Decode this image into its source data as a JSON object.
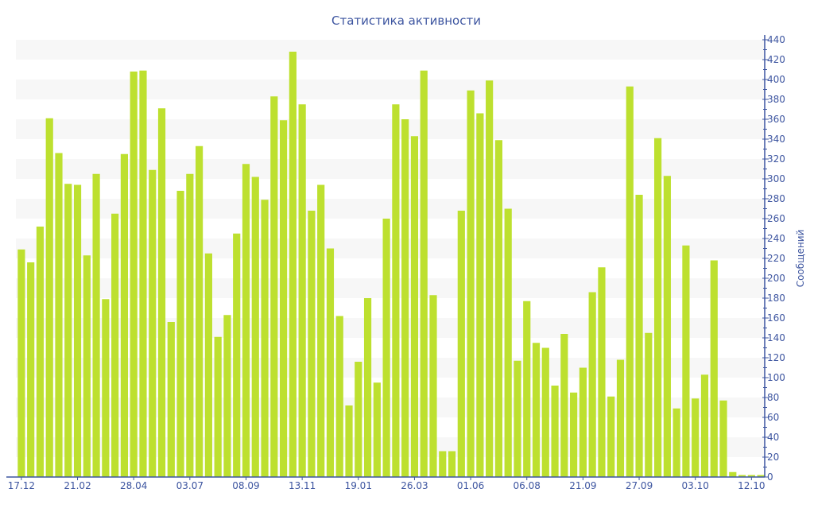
{
  "chart_data": {
    "type": "bar",
    "title": "Статистика активности",
    "ylabel": "Сообщений",
    "xlabel": "",
    "ylim": [
      0,
      440
    ],
    "ytick_step": 20,
    "grid": "alternating horizontal bands",
    "y_axis_position": "right",
    "colors": {
      "bar": "#bde02f",
      "axis": "#3d55a0",
      "band": "#f7f7f7"
    },
    "x_tick_labels": [
      "17.12",
      "21.02",
      "28.04",
      "03.07",
      "08.09",
      "13.11",
      "19.01",
      "26.03",
      "01.06",
      "06.08",
      "21.09",
      "27.09",
      "03.10",
      "12.10"
    ],
    "x_tick_every": 6,
    "values": [
      229,
      216,
      252,
      361,
      326,
      295,
      294,
      223,
      305,
      179,
      265,
      325,
      408,
      409,
      309,
      371,
      156,
      288,
      305,
      333,
      225,
      141,
      163,
      245,
      315,
      302,
      279,
      383,
      359,
      428,
      375,
      268,
      294,
      230,
      162,
      72,
      116,
      180,
      95,
      260,
      375,
      360,
      343,
      409,
      183,
      26,
      26,
      268,
      389,
      366,
      399,
      339,
      270,
      117,
      177,
      135,
      130,
      92,
      144,
      85,
      110,
      186,
      211,
      81,
      118,
      393,
      284,
      145,
      341,
      303,
      69,
      233,
      79,
      103,
      218,
      77,
      5,
      2,
      2,
      2
    ]
  }
}
